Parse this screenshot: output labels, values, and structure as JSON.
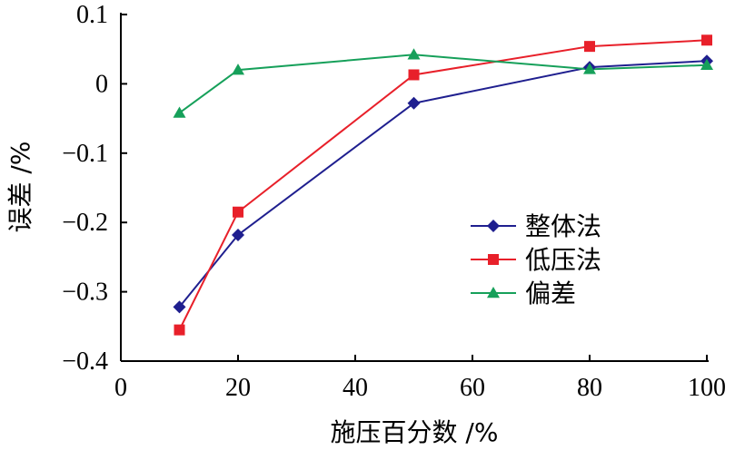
{
  "chart_data": {
    "type": "line",
    "xlabel": "施压百分数 /%",
    "ylabel": "误差 /%",
    "xlim": [
      0,
      100
    ],
    "ylim": [
      -0.4,
      0.1
    ],
    "x_ticks": [
      0,
      20,
      40,
      60,
      80,
      100
    ],
    "x_tick_labels": [
      "0",
      "20",
      "40",
      "60",
      "80",
      "100"
    ],
    "y_ticks": [
      -0.4,
      -0.3,
      -0.2,
      -0.1,
      0,
      0.1
    ],
    "y_tick_labels": [
      "−0.4",
      "−0.3",
      "−0.2",
      "−0.1",
      "0",
      "0.1"
    ],
    "grid": false,
    "legend_position": "right-middle",
    "series": [
      {
        "name": "整体法",
        "color": "#1f1f8f",
        "marker": "diamond",
        "x": [
          10,
          20,
          50,
          80,
          100
        ],
        "y": [
          -0.322,
          -0.218,
          -0.028,
          0.024,
          0.033
        ]
      },
      {
        "name": "低压法",
        "color": "#e8202a",
        "marker": "square",
        "x": [
          10,
          20,
          50,
          80,
          100
        ],
        "y": [
          -0.355,
          -0.185,
          0.013,
          0.054,
          0.063
        ]
      },
      {
        "name": "偏差",
        "color": "#16a05a",
        "marker": "triangle",
        "x": [
          10,
          20,
          50,
          80,
          100
        ],
        "y": [
          -0.042,
          0.02,
          0.042,
          0.021,
          0.027
        ]
      }
    ]
  }
}
